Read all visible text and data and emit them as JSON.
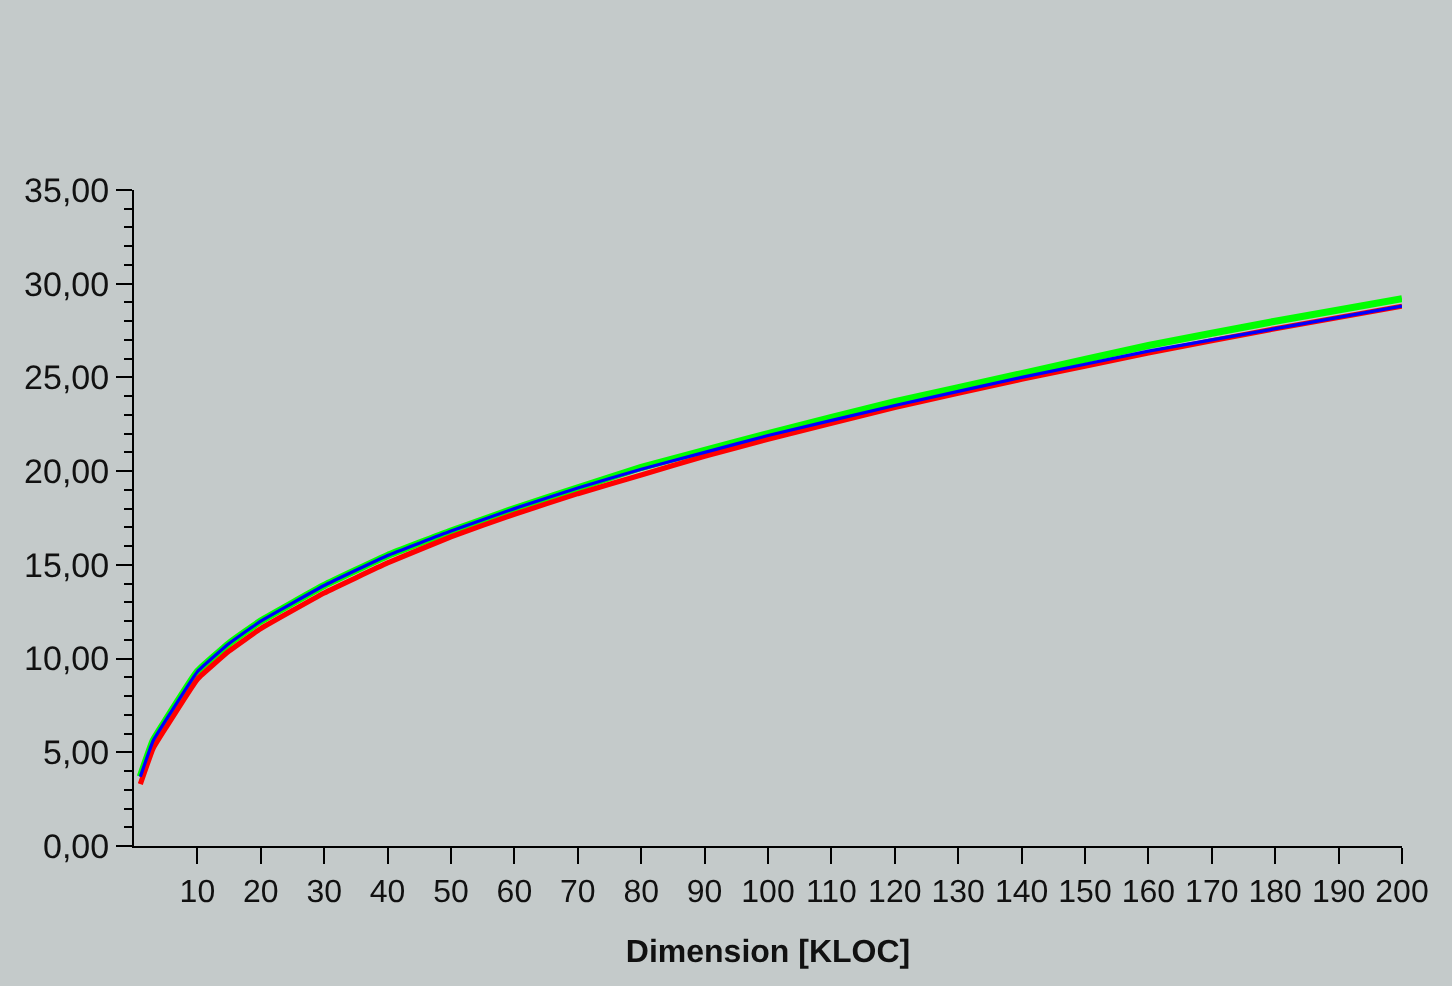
{
  "chart_data": {
    "type": "line",
    "xlabel": "Dimension [KLOC]",
    "x": [
      1,
      3,
      5,
      10,
      15,
      20,
      30,
      40,
      50,
      60,
      70,
      80,
      90,
      100,
      120,
      140,
      160,
      180,
      200
    ],
    "series": [
      {
        "color": "#00ff00",
        "values": [
          3.7,
          5.6,
          6.7,
          9.3,
          10.8,
          12.0,
          13.9,
          15.5,
          16.8,
          18.0,
          19.1,
          20.2,
          21.1,
          22.0,
          23.7,
          25.2,
          26.7,
          28.0,
          29.2
        ]
      },
      {
        "color": "#0000ff",
        "values": [
          3.7,
          5.6,
          6.7,
          9.3,
          10.8,
          12.0,
          13.9,
          15.5,
          16.8,
          18.0,
          19.1,
          20.1,
          21.0,
          21.9,
          23.5,
          25.0,
          26.4,
          27.6,
          28.8
        ]
      },
      {
        "color": "#ff0000",
        "values": [
          3.3,
          5.2,
          6.3,
          8.9,
          10.4,
          11.6,
          13.5,
          15.1,
          16.5,
          17.7,
          18.8,
          19.8,
          20.8,
          21.7,
          23.4,
          24.9,
          26.3,
          27.6,
          28.8
        ]
      }
    ],
    "xlim": [
      0,
      200
    ],
    "xticks": [
      10,
      20,
      30,
      40,
      50,
      60,
      70,
      80,
      90,
      100,
      110,
      120,
      130,
      140,
      150,
      160,
      170,
      180,
      190,
      200
    ],
    "ylim": [
      0,
      35
    ],
    "yticks": [
      {
        "value": 0,
        "label": "0,00"
      },
      {
        "value": 5,
        "label": "5,00"
      },
      {
        "value": 10,
        "label": "10,00"
      },
      {
        "value": 15,
        "label": "15,00"
      },
      {
        "value": 20,
        "label": "20,00"
      },
      {
        "value": 25,
        "label": "25,00"
      },
      {
        "value": 30,
        "label": "30,00"
      },
      {
        "value": 35,
        "label": "35,00"
      }
    ],
    "grid": false,
    "marker": "none",
    "line_style": "solid"
  }
}
